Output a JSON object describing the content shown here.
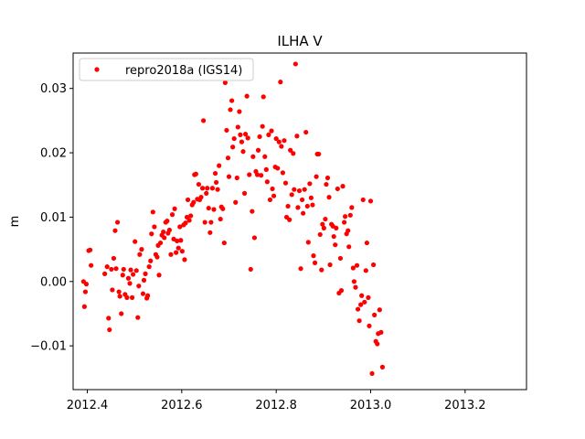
{
  "chart_data": {
    "type": "scatter",
    "title": "ILHA V",
    "xlabel": "",
    "ylabel": "m",
    "xlim": [
      2012.37,
      2013.33
    ],
    "ylim": [
      -0.0168,
      0.0355
    ],
    "xticks": [
      2012.4,
      2012.6,
      2012.8,
      2013.0,
      2013.2
    ],
    "xtick_labels": [
      "2012.4",
      "2012.6",
      "2012.8",
      "2013.0",
      "2013.2"
    ],
    "yticks": [
      -0.01,
      0.0,
      0.01,
      0.02,
      0.03
    ],
    "ytick_labels": [
      "−0.01",
      "0.00",
      "0.01",
      "0.02",
      "0.03"
    ],
    "grid": false,
    "legend_position": "top-left",
    "series": [
      {
        "name": "repro2018a (IGS14)",
        "color": "#ff0000",
        "marker": "circle",
        "points": [
          [
            2012.392,
            0.0
          ],
          [
            2012.394,
            -0.0039
          ],
          [
            2012.396,
            -0.0016
          ],
          [
            2012.398,
            -0.0004
          ],
          [
            2012.403,
            0.0048
          ],
          [
            2012.406,
            0.0049
          ],
          [
            2012.408,
            0.0025
          ],
          [
            2012.437,
            0.0012
          ],
          [
            2012.442,
            0.0023
          ],
          [
            2012.445,
            -0.0057
          ],
          [
            2012.447,
            -0.0075
          ],
          [
            2012.451,
            0.0019
          ],
          [
            2012.453,
            -0.0013
          ],
          [
            2012.456,
            0.0036
          ],
          [
            2012.459,
            0.0079
          ],
          [
            2012.461,
            0.002
          ],
          [
            2012.464,
            0.0092
          ],
          [
            2012.467,
            -0.0016
          ],
          [
            2012.469,
            -0.0023
          ],
          [
            2012.472,
            -0.005
          ],
          [
            2012.475,
            0.001
          ],
          [
            2012.477,
            0.0019
          ],
          [
            2012.48,
            -0.002
          ],
          [
            2012.484,
            -0.0025
          ],
          [
            2012.487,
            0.0005
          ],
          [
            2012.49,
            -0.0003
          ],
          [
            2012.492,
            0.0018
          ],
          [
            2012.495,
            -0.0025
          ],
          [
            2012.497,
            0.0011
          ],
          [
            2012.501,
            0.0062
          ],
          [
            2012.504,
            0.0017
          ],
          [
            2012.507,
            -0.0056
          ],
          [
            2012.509,
            -0.0007
          ],
          [
            2012.511,
            0.0042
          ],
          [
            2012.515,
            0.005
          ],
          [
            2012.518,
            -0.0019
          ],
          [
            2012.52,
            0.0002
          ],
          [
            2012.523,
            0.0012
          ],
          [
            2012.526,
            -0.0026
          ],
          [
            2012.528,
            -0.0022
          ],
          [
            2012.531,
            0.0023
          ],
          [
            2012.534,
            0.0032
          ],
          [
            2012.536,
            0.0074
          ],
          [
            2012.539,
            0.0108
          ],
          [
            2012.542,
            0.0085
          ],
          [
            2012.545,
            0.0042
          ],
          [
            2012.548,
            0.0038
          ],
          [
            2012.55,
            0.0056
          ],
          [
            2012.552,
            0.001
          ],
          [
            2012.555,
            0.006
          ],
          [
            2012.558,
            0.0072
          ],
          [
            2012.561,
            0.0077
          ],
          [
            2012.563,
            0.0068
          ],
          [
            2012.566,
            0.0092
          ],
          [
            2012.569,
            0.0094
          ],
          [
            2012.571,
            0.0075
          ],
          [
            2012.574,
            0.008
          ],
          [
            2012.577,
            0.0042
          ],
          [
            2012.58,
            0.0104
          ],
          [
            2012.583,
            0.0066
          ],
          [
            2012.585,
            0.0113
          ],
          [
            2012.588,
            0.0045
          ],
          [
            2012.59,
            0.0063
          ],
          [
            2012.593,
            0.0052
          ],
          [
            2012.596,
            0.0085
          ],
          [
            2012.598,
            0.0064
          ],
          [
            2012.601,
            0.0047
          ],
          [
            2012.604,
            0.0088
          ],
          [
            2012.606,
            0.0034
          ],
          [
            2012.608,
            0.0091
          ],
          [
            2012.611,
            0.01
          ],
          [
            2012.613,
            0.0127
          ],
          [
            2012.616,
            0.0095
          ],
          [
            2012.619,
            0.0102
          ],
          [
            2012.622,
            0.0119
          ],
          [
            2012.625,
            0.0123
          ],
          [
            2012.627,
            0.0166
          ],
          [
            2012.63,
            0.0167
          ],
          [
            2012.633,
            0.0128
          ],
          [
            2012.636,
            0.0151
          ],
          [
            2012.638,
            0.0127
          ],
          [
            2012.641,
            0.0131
          ],
          [
            2012.644,
            0.0145
          ],
          [
            2012.646,
            0.025
          ],
          [
            2012.649,
            0.0092
          ],
          [
            2012.652,
            0.0137
          ],
          [
            2012.654,
            0.0145
          ],
          [
            2012.657,
            0.0114
          ],
          [
            2012.66,
            0.0076
          ],
          [
            2012.662,
            0.0092
          ],
          [
            2012.665,
            0.0145
          ],
          [
            2012.668,
            0.0112
          ],
          [
            2012.671,
            0.0168
          ],
          [
            2012.673,
            0.0154
          ],
          [
            2012.676,
            0.0143
          ],
          [
            2012.679,
            0.018
          ],
          [
            2012.682,
            0.0097
          ],
          [
            2012.684,
            0.0116
          ],
          [
            2012.687,
            0.0113
          ],
          [
            2012.69,
            0.006
          ],
          [
            2012.692,
            0.0309
          ],
          [
            2012.695,
            0.0235
          ],
          [
            2012.698,
            0.0192
          ],
          [
            2012.7,
            0.0163
          ],
          [
            2012.703,
            0.0267
          ],
          [
            2012.706,
            0.0281
          ],
          [
            2012.708,
            0.0209
          ],
          [
            2012.711,
            0.0222
          ],
          [
            2012.714,
            0.0123
          ],
          [
            2012.717,
            0.0161
          ],
          [
            2012.719,
            0.024
          ],
          [
            2012.722,
            0.0264
          ],
          [
            2012.724,
            0.0228
          ],
          [
            2012.727,
            0.0217
          ],
          [
            2012.73,
            0.0202
          ],
          [
            2012.733,
            0.0137
          ],
          [
            2012.735,
            0.0229
          ],
          [
            2012.738,
            0.0288
          ],
          [
            2012.74,
            0.0223
          ],
          [
            2012.743,
            0.0166
          ],
          [
            2012.746,
            0.0019
          ],
          [
            2012.749,
            0.0109
          ],
          [
            2012.751,
            0.0194
          ],
          [
            2012.754,
            0.0068
          ],
          [
            2012.757,
            0.0171
          ],
          [
            2012.76,
            0.0166
          ],
          [
            2012.762,
            0.0204
          ],
          [
            2012.765,
            0.0225
          ],
          [
            2012.768,
            0.0165
          ],
          [
            2012.771,
            0.0241
          ],
          [
            2012.773,
            0.0287
          ],
          [
            2012.776,
            0.0194
          ],
          [
            2012.779,
            0.0174
          ],
          [
            2012.781,
            0.0155
          ],
          [
            2012.784,
            0.0228
          ],
          [
            2012.787,
            0.0127
          ],
          [
            2012.79,
            0.0234
          ],
          [
            2012.792,
            0.0144
          ],
          [
            2012.795,
            0.0133
          ],
          [
            2012.798,
            0.0178
          ],
          [
            2012.8,
            0.0222
          ],
          [
            2012.803,
            0.0176
          ],
          [
            2012.806,
            0.0217
          ],
          [
            2012.809,
            0.031
          ],
          [
            2012.811,
            0.021
          ],
          [
            2012.814,
            0.0169
          ],
          [
            2012.817,
            0.0219
          ],
          [
            2012.82,
            0.0153
          ],
          [
            2012.822,
            0.01
          ],
          [
            2012.825,
            0.0117
          ],
          [
            2012.828,
            0.0096
          ],
          [
            2012.83,
            0.0204
          ],
          [
            2012.833,
            0.0135
          ],
          [
            2012.836,
            0.0199
          ],
          [
            2012.838,
            0.0143
          ],
          [
            2012.841,
            0.0338
          ],
          [
            2012.844,
            0.0226
          ],
          [
            2012.846,
            0.0115
          ],
          [
            2012.849,
            0.0141
          ],
          [
            2012.852,
            0.002
          ],
          [
            2012.855,
            0.0127
          ],
          [
            2012.857,
            0.0106
          ],
          [
            2012.86,
            0.0143
          ],
          [
            2012.863,
            0.0232
          ],
          [
            2012.866,
            0.0117
          ],
          [
            2012.868,
            0.0061
          ],
          [
            2012.871,
            0.0152
          ],
          [
            2012.874,
            0.013
          ],
          [
            2012.877,
            0.0119
          ],
          [
            2012.879,
            0.004
          ],
          [
            2012.882,
            0.0029
          ],
          [
            2012.885,
            0.0163
          ],
          [
            2012.887,
            0.0198
          ],
          [
            2012.89,
            0.0198
          ],
          [
            2012.893,
            0.0073
          ],
          [
            2012.896,
            0.0018
          ],
          [
            2012.898,
            0.0089
          ],
          [
            2012.901,
            0.0083
          ],
          [
            2012.904,
            0.0097
          ],
          [
            2012.906,
            0.0151
          ],
          [
            2012.909,
            0.0161
          ],
          [
            2012.912,
            0.0131
          ],
          [
            2012.914,
            0.0026
          ],
          [
            2012.917,
            0.0089
          ],
          [
            2012.92,
            0.0086
          ],
          [
            2012.922,
            0.007
          ],
          [
            2012.925,
            0.0057
          ],
          [
            2012.927,
            0.0083
          ],
          [
            2012.93,
            0.0144
          ],
          [
            2012.933,
            -0.0018
          ],
          [
            2012.936,
            0.0036
          ],
          [
            2012.938,
            -0.0014
          ],
          [
            2012.941,
            0.0148
          ],
          [
            2012.944,
            0.0092
          ],
          [
            2012.946,
            0.0101
          ],
          [
            2012.949,
            0.0074
          ],
          [
            2012.952,
            0.0079
          ],
          [
            2012.954,
            0.0054
          ],
          [
            2012.957,
            0.0103
          ],
          [
            2012.96,
            0.0115
          ],
          [
            2012.963,
            0.0021
          ],
          [
            2012.965,
            0.0
          ],
          [
            2012.968,
            -0.0009
          ],
          [
            2012.971,
            0.0025
          ],
          [
            2012.973,
            -0.0043
          ],
          [
            2012.976,
            -0.0061
          ],
          [
            2012.979,
            -0.0036
          ],
          [
            2012.981,
            -0.0022
          ],
          [
            2012.984,
            0.0127
          ],
          [
            2012.987,
            -0.0032
          ],
          [
            2012.99,
            0.0017
          ],
          [
            2012.992,
            0.006
          ],
          [
            2012.995,
            -0.0025
          ],
          [
            2012.997,
            -0.0069
          ],
          [
            2013.0,
            0.0125
          ],
          [
            2013.003,
            -0.0143
          ],
          [
            2013.006,
            0.0026
          ],
          [
            2013.008,
            -0.0052
          ],
          [
            2013.011,
            -0.0093
          ],
          [
            2013.014,
            -0.0097
          ],
          [
            2013.016,
            -0.0081
          ],
          [
            2013.019,
            -0.0044
          ],
          [
            2013.022,
            -0.0079
          ],
          [
            2013.025,
            -0.0133
          ]
        ]
      }
    ]
  }
}
